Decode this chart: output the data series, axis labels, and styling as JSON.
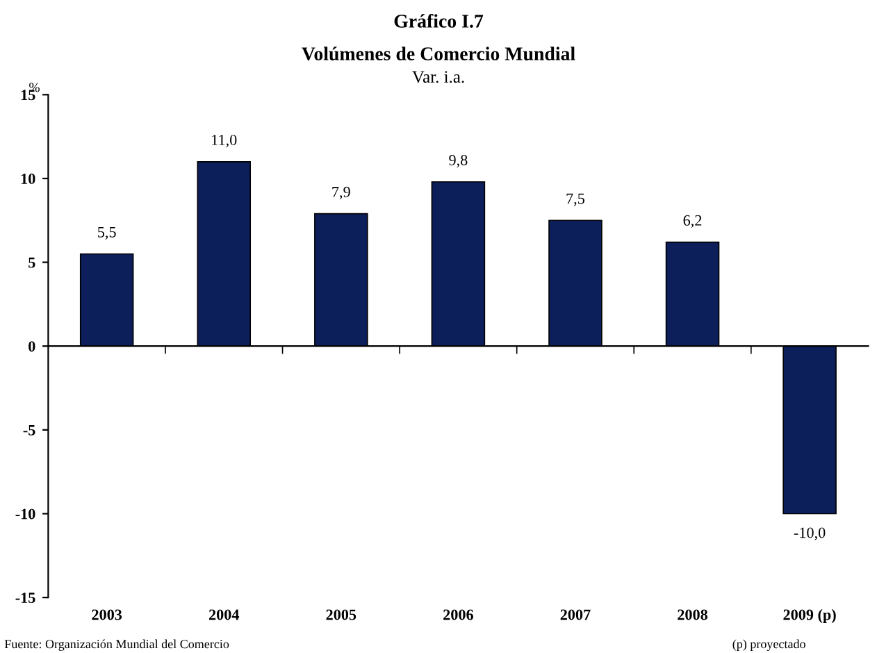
{
  "chart_data": {
    "type": "bar",
    "title": "Gráfico I.7",
    "subtitle": "Volúmenes de Comercio Mundial",
    "ylabel": "%",
    "categories": [
      "2003",
      "2004",
      "2005",
      "2006",
      "2007",
      "2008",
      "2009 (p)"
    ],
    "values": [
      5.5,
      11.0,
      7.9,
      9.8,
      7.5,
      6.2,
      -10.0
    ],
    "value_labels": [
      "5,5",
      "11,0",
      "7,9",
      "9,8",
      "7,5",
      "6,2",
      "-10,0"
    ],
    "color": "#0c1f5a",
    "ylim": [
      -15,
      15
    ],
    "yticks": [
      -15,
      -10,
      -5,
      0,
      5,
      10,
      15
    ],
    "legend": false,
    "annotations": [
      "Var. i.a.",
      "Fuente: Organización Mundial del Comercio",
      "(p) proyectado"
    ]
  }
}
